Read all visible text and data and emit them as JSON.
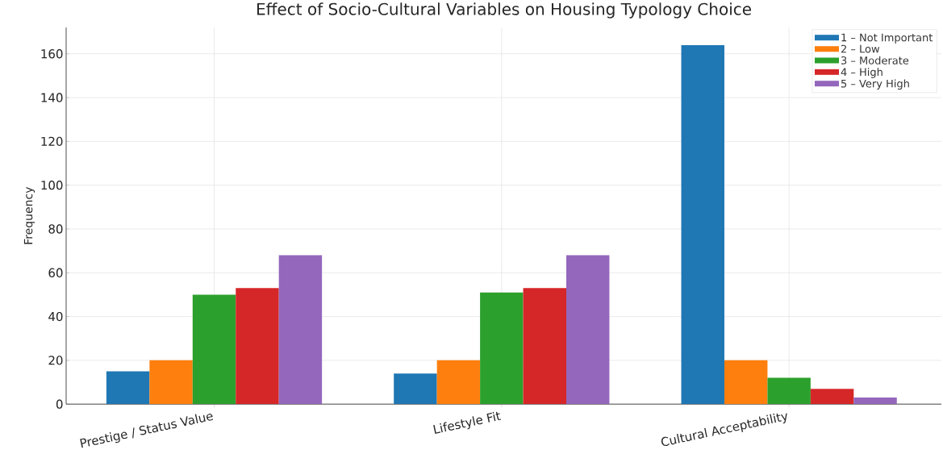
{
  "chart_data": {
    "type": "bar",
    "title": "Effect of Socio-Cultural Variables on Housing Typology Choice",
    "ylabel": "Frequency",
    "categories": [
      "Prestige / Status Value",
      "Lifestyle Fit",
      "Cultural Acceptability"
    ],
    "series": [
      {
        "name": "1 – Not Important",
        "color": "#1f77b4",
        "values": [
          15,
          14,
          164
        ]
      },
      {
        "name": "2 – Low",
        "color": "#ff7f0e",
        "values": [
          20,
          20,
          20
        ]
      },
      {
        "name": "3 – Moderate",
        "color": "#2ca02c",
        "values": [
          50,
          51,
          12
        ]
      },
      {
        "name": "4 – High",
        "color": "#d62728",
        "values": [
          53,
          53,
          7
        ]
      },
      {
        "name": "5 – Very High",
        "color": "#9467bd",
        "values": [
          68,
          68,
          3
        ]
      }
    ],
    "ylim": [
      0,
      172
    ],
    "yticks": [
      0,
      20,
      40,
      60,
      80,
      100,
      120,
      140,
      160
    ],
    "grid": true,
    "legend": "top right"
  }
}
